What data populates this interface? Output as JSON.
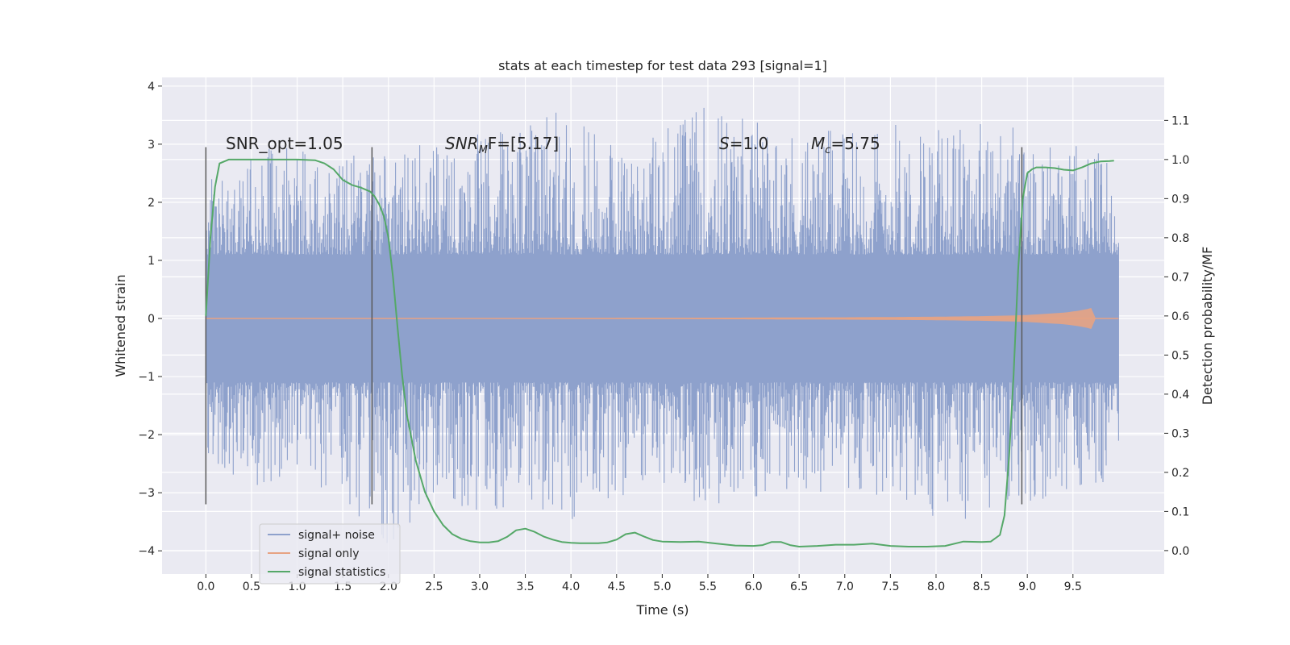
{
  "colors": {
    "plot_background": "#EAEAF2",
    "grid": "#FFFFFF",
    "noise_series": "#8EA1CC",
    "signal_series": "#E7A383",
    "statistics_series": "#55A868",
    "vertical_markers": "#595959",
    "text": "#262626"
  },
  "chart_data": {
    "type": "line",
    "title": "stats at each timestep for test data 293 [signal=1]",
    "xlabel": "Time (s)",
    "ylabel": "Whitened strain",
    "y2label": "Detection probability/MF",
    "xlim": [
      -0.48,
      10.5
    ],
    "ylim": [
      -4.4,
      4.15
    ],
    "y2lim": [
      -0.06,
      1.21
    ],
    "xticks": [
      0.0,
      0.5,
      1.0,
      1.5,
      2.0,
      2.5,
      3.0,
      3.5,
      4.0,
      4.5,
      5.0,
      5.5,
      6.0,
      6.5,
      7.0,
      7.5,
      8.0,
      8.5,
      9.0,
      9.5
    ],
    "xtick_labels": [
      "0.0",
      "0.5",
      "1.0",
      "1.5",
      "2.0",
      "2.5",
      "3.0",
      "3.5",
      "4.0",
      "4.5",
      "5.0",
      "5.5",
      "6.0",
      "6.5",
      "7.0",
      "7.5",
      "8.0",
      "8.5",
      "9.0",
      "9.5"
    ],
    "yticks": [
      -4,
      -3,
      -2,
      -1,
      0,
      1,
      2,
      3,
      4
    ],
    "ytick_labels": [
      "−4",
      "−3",
      "−2",
      "−1",
      "0",
      "1",
      "2",
      "3",
      "4"
    ],
    "y2ticks": [
      0.0,
      0.1,
      0.2,
      0.3,
      0.4,
      0.5,
      0.6,
      0.7,
      0.8,
      0.9,
      1.0,
      1.1
    ],
    "y2tick_labels": [
      "0.0",
      "0.1",
      "0.2",
      "0.3",
      "0.4",
      "0.5",
      "0.6",
      "0.7",
      "0.8",
      "0.9",
      "1.0",
      "1.1"
    ],
    "grid": true,
    "legend_position": "lower-left",
    "legend": [
      "signal+ noise",
      "signal only",
      "signal statistics"
    ],
    "annotations": [
      {
        "text": "SNR_opt=1.05",
        "x": 0.2,
        "y": 2.95
      },
      {
        "text_main": "SNR",
        "text_sub": "M",
        "text_rest": "F=[5.17]",
        "x": 2.6,
        "y": 2.95
      },
      {
        "text_main": "S",
        "text_rest": "=1.0",
        "x": 5.6,
        "y": 2.95
      },
      {
        "text_main": "M",
        "text_sub": "c",
        "text_rest": "=5.75",
        "x": 6.6,
        "y": 2.95
      }
    ],
    "vertical_markers": [
      {
        "x": 0.0,
        "ymin": -3.2,
        "ymax": 2.95
      },
      {
        "x": 1.82,
        "ymin": -3.2,
        "ymax": 2.95
      },
      {
        "x": 8.94,
        "ymin": -3.2,
        "ymax": 2.95
      }
    ],
    "series": [
      {
        "name": "signal+ noise",
        "kind": "noise_band",
        "x_range": [
          0.0,
          10.0
        ],
        "envelope": {
          "x": [
            0.0,
            0.5,
            1.0,
            1.5,
            2.0,
            2.5,
            3.0,
            3.5,
            4.0,
            4.5,
            5.0,
            5.5,
            6.0,
            6.5,
            7.0,
            7.5,
            8.0,
            8.5,
            9.0,
            9.5,
            10.0
          ],
          "upper": [
            2.6,
            2.9,
            3.0,
            2.8,
            2.9,
            3.2,
            3.3,
            3.3,
            3.7,
            3.0,
            3.3,
            3.8,
            3.5,
            3.3,
            3.2,
            3.5,
            3.3,
            3.4,
            3.3,
            3.0,
            2.9
          ],
          "lower": [
            -2.5,
            -2.9,
            -2.7,
            -3.2,
            -4.0,
            -3.0,
            -3.4,
            -3.2,
            -3.5,
            -3.1,
            -2.9,
            -3.4,
            -3.1,
            -3.0,
            -3.0,
            -3.2,
            -3.5,
            -3.5,
            -3.3,
            -3.1,
            -2.7
          ]
        }
      },
      {
        "name": "signal only",
        "kind": "chirp",
        "x": [
          0.0,
          5.0,
          7.0,
          8.0,
          8.5,
          8.8,
          9.0,
          9.2,
          9.4,
          9.55,
          9.65,
          9.7,
          9.72,
          10.0
        ],
        "amplitude": [
          0.0,
          0.01,
          0.02,
          0.03,
          0.04,
          0.05,
          0.06,
          0.08,
          0.1,
          0.13,
          0.16,
          0.18,
          0.0,
          0.0
        ]
      },
      {
        "name": "signal statistics",
        "kind": "line",
        "axis": "right",
        "x": [
          0.0,
          0.05,
          0.1,
          0.15,
          0.25,
          0.4,
          0.6,
          0.8,
          1.0,
          1.2,
          1.3,
          1.4,
          1.5,
          1.6,
          1.7,
          1.8,
          1.85,
          1.9,
          1.95,
          2.0,
          2.05,
          2.1,
          2.15,
          2.2,
          2.3,
          2.4,
          2.5,
          2.6,
          2.7,
          2.8,
          2.9,
          3.0,
          3.1,
          3.2,
          3.3,
          3.4,
          3.5,
          3.6,
          3.7,
          3.8,
          3.9,
          4.0,
          4.1,
          4.2,
          4.3,
          4.4,
          4.5,
          4.6,
          4.7,
          4.8,
          4.9,
          5.0,
          5.2,
          5.4,
          5.6,
          5.8,
          6.0,
          6.1,
          6.2,
          6.3,
          6.4,
          6.5,
          6.7,
          6.9,
          7.1,
          7.3,
          7.5,
          7.7,
          7.9,
          8.1,
          8.3,
          8.5,
          8.6,
          8.7,
          8.75,
          8.8,
          8.85,
          8.9,
          8.95,
          9.0,
          9.05,
          9.1,
          9.2,
          9.3,
          9.4,
          9.5,
          9.6,
          9.7,
          9.8,
          9.9,
          9.95
        ],
        "y": [
          0.6,
          0.8,
          0.93,
          0.99,
          1.0,
          1.0,
          1.0,
          1.0,
          1.0,
          0.998,
          0.99,
          0.975,
          0.948,
          0.935,
          0.928,
          0.918,
          0.905,
          0.885,
          0.855,
          0.8,
          0.7,
          0.57,
          0.45,
          0.35,
          0.23,
          0.15,
          0.1,
          0.065,
          0.042,
          0.03,
          0.024,
          0.021,
          0.021,
          0.024,
          0.035,
          0.052,
          0.056,
          0.048,
          0.036,
          0.028,
          0.022,
          0.02,
          0.019,
          0.019,
          0.019,
          0.021,
          0.028,
          0.042,
          0.046,
          0.036,
          0.027,
          0.023,
          0.022,
          0.023,
          0.018,
          0.013,
          0.012,
          0.014,
          0.022,
          0.022,
          0.014,
          0.01,
          0.012,
          0.015,
          0.015,
          0.018,
          0.012,
          0.01,
          0.01,
          0.012,
          0.023,
          0.022,
          0.023,
          0.04,
          0.09,
          0.24,
          0.45,
          0.72,
          0.9,
          0.965,
          0.975,
          0.98,
          0.98,
          0.978,
          0.974,
          0.972,
          0.98,
          0.99,
          0.995,
          0.996,
          0.997
        ]
      }
    ]
  }
}
